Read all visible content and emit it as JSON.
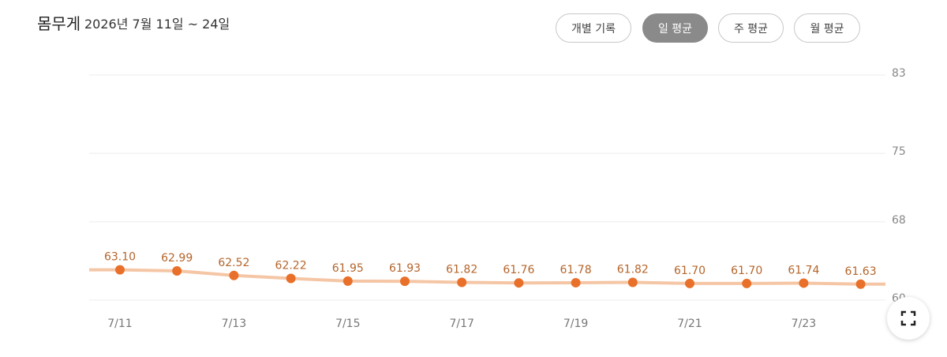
{
  "header": {
    "title": "몸무게",
    "subtitle": "2026년 7월 11일 ~ 24일",
    "buttons": [
      "개별 기록",
      "일 평균",
      "주 평균",
      "월 평균"
    ]
  },
  "chart_data": {
    "type": "line",
    "categories": [
      "7/11",
      null,
      "7/13",
      null,
      "7/15",
      null,
      "7/17",
      null,
      "7/19",
      null,
      "7/21",
      null,
      "7/23",
      null
    ],
    "series": [
      {
        "color": "#e8702a",
        "values": [
          63.1,
          62.99,
          62.52,
          62.22,
          61.95,
          61.93,
          61.82,
          61.76,
          61.78,
          61.82,
          61.7,
          61.7,
          61.74,
          61.63
        ],
        "value_labels": [
          "63.10",
          "62.99",
          "62.52",
          "62.22",
          "61.95",
          "61.93",
          "61.82",
          "61.76",
          "61.78",
          "61.82",
          "61.70",
          "61.70",
          "61.74",
          "61.63"
        ]
      }
    ],
    "ylim": [
      60,
      83
    ],
    "yticks": [
      60,
      68,
      75,
      83
    ],
    "grid": true
  }
}
